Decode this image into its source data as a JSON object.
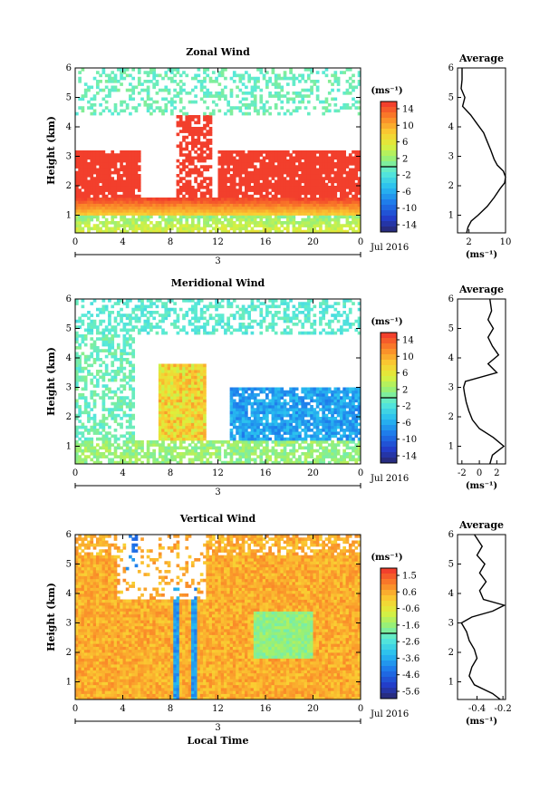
{
  "chart_data": [
    {
      "type": "heatmap",
      "title": "Zonal Wind",
      "ylabel": "Height (km)",
      "xticks": [
        "0",
        "4",
        "8",
        "12",
        "16",
        "20",
        "0"
      ],
      "yticks": [
        "1",
        "2",
        "3",
        "4",
        "5",
        "6"
      ],
      "xlim": [
        0,
        24
      ],
      "ylim": [
        0.4,
        6
      ],
      "date_label": "Jul 2016",
      "day_label": "3",
      "colorbar": {
        "unit": "(ms⁻¹)",
        "ticks": [
          "14",
          "10",
          "6",
          "2",
          "-2",
          "-6",
          "-10",
          "-14"
        ],
        "range": [
          -16,
          16
        ]
      },
      "average": {
        "title": "Average",
        "xlabel": "(ms⁻¹)",
        "xticks": [
          "2",
          "10"
        ],
        "xlim": [
          -0.5,
          10
        ],
        "yticks": [
          "1",
          "2",
          "3",
          "4",
          "5",
          "6"
        ],
        "heights": [
          0.4,
          0.6,
          0.8,
          1.0,
          1.3,
          1.6,
          1.9,
          2.1,
          2.3,
          2.5,
          2.7,
          2.9,
          3.2,
          3.5,
          3.8,
          4.1,
          4.4,
          4.7,
          5.0,
          5.3,
          5.6,
          6.0
        ],
        "values": [
          1.5,
          1.8,
          2.5,
          4.0,
          6.0,
          7.5,
          8.8,
          9.8,
          10.0,
          9.5,
          8.2,
          7.5,
          6.8,
          6.0,
          5.2,
          3.8,
          2.4,
          0.6,
          1.1,
          0.3,
          0.5,
          0.5
        ]
      }
    },
    {
      "type": "heatmap",
      "title": "Meridional Wind",
      "ylabel": "Height (km)",
      "xticks": [
        "0",
        "4",
        "8",
        "12",
        "16",
        "20",
        "0"
      ],
      "yticks": [
        "1",
        "2",
        "3",
        "4",
        "5",
        "6"
      ],
      "xlim": [
        0,
        24
      ],
      "ylim": [
        0.4,
        6
      ],
      "date_label": "Jul 2016",
      "day_label": "3",
      "colorbar": {
        "unit": "(ms⁻¹)",
        "ticks": [
          "14",
          "10",
          "6",
          "2",
          "-2",
          "-6",
          "-10",
          "-14"
        ],
        "range": [
          -16,
          16
        ]
      },
      "average": {
        "title": "Average",
        "xlabel": "(ms⁻¹)",
        "xticks": [
          "-2",
          "0",
          "2"
        ],
        "xlim": [
          -2.5,
          3
        ],
        "yticks": [
          "1",
          "2",
          "3",
          "4",
          "5",
          "6"
        ],
        "heights": [
          0.4,
          0.7,
          1.0,
          1.3,
          1.6,
          1.9,
          2.2,
          2.5,
          2.8,
          3.0,
          3.2,
          3.5,
          3.8,
          4.1,
          4.4,
          4.7,
          5.0,
          5.3,
          5.6,
          6.0
        ],
        "values": [
          1.2,
          1.5,
          2.8,
          1.6,
          0.0,
          -0.8,
          -1.2,
          -1.5,
          -1.7,
          -1.8,
          -1.6,
          2.0,
          1.0,
          2.2,
          1.5,
          1.0,
          1.6,
          1.0,
          1.4,
          1.2
        ]
      }
    },
    {
      "type": "heatmap",
      "title": "Vertical Wind",
      "ylabel": "Height (km)",
      "xlabel": "Local Time",
      "xticks": [
        "0",
        "4",
        "8",
        "12",
        "16",
        "20",
        "0"
      ],
      "yticks": [
        "1",
        "2",
        "3",
        "4",
        "5",
        "6"
      ],
      "xlim": [
        0,
        24
      ],
      "ylim": [
        0.4,
        6
      ],
      "date_label": "Jul 2016",
      "day_label": "3",
      "colorbar": {
        "unit": "(ms⁻¹)",
        "ticks": [
          "1.5",
          "0.6",
          "-0.6",
          "-1.6",
          "-2.6",
          "-3.6",
          "-4.6",
          "-5.6"
        ],
        "range": [
          -6,
          2
        ]
      },
      "average": {
        "title": "Average",
        "xlabel": "(ms⁻¹)",
        "xticks": [
          "-0.4",
          "-0.2"
        ],
        "xlim": [
          -0.55,
          -0.18
        ],
        "yticks": [
          "1",
          "2",
          "3",
          "4",
          "5",
          "6"
        ],
        "heights": [
          0.4,
          0.6,
          0.9,
          1.2,
          1.5,
          1.8,
          2.1,
          2.4,
          2.7,
          3.0,
          3.2,
          3.4,
          3.6,
          3.8,
          4.1,
          4.4,
          4.7,
          5.0,
          5.3,
          5.6,
          6.0
        ],
        "values": [
          -0.22,
          -0.28,
          -0.42,
          -0.46,
          -0.44,
          -0.4,
          -0.42,
          -0.46,
          -0.48,
          -0.52,
          -0.44,
          -0.28,
          -0.19,
          -0.35,
          -0.38,
          -0.33,
          -0.38,
          -0.34,
          -0.4,
          -0.36,
          -0.42
        ]
      }
    }
  ]
}
